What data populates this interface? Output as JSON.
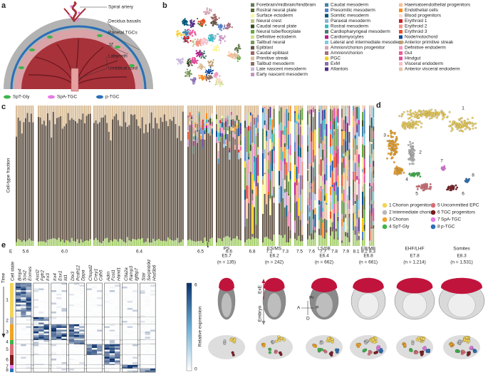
{
  "panel_labels": [
    "a",
    "b",
    "c",
    "d",
    "e",
    "f"
  ],
  "panel_a": {
    "labels": [
      "Spiral artery",
      "Decidua basalis",
      "Parietal TGCs",
      "JZ",
      "Labyrinth",
      "Umbilical cord"
    ],
    "legend": [
      {
        "label": "SpT-Gly",
        "color": "#3cb54a"
      },
      {
        "label": "SpA-TGC",
        "color": "#e879e6"
      },
      {
        "label": "p-TGC",
        "color": "#2a6fb8"
      }
    ]
  },
  "panel_b": {
    "legend": [
      {
        "label": "Forebrain/midbrain/hindbrain",
        "color": "#647a4f"
      },
      {
        "label": "Rostral neural plate",
        "color": "#556b2f"
      },
      {
        "label": "Surface ectoderm",
        "color": "#f7f79e"
      },
      {
        "label": "Neural crest",
        "color": "#c3c388"
      },
      {
        "label": "Caudal neural plate",
        "color": "#354e23"
      },
      {
        "label": "Neural tube/floorplate",
        "color": "#65a83e"
      },
      {
        "label": "Definitive ectoderm",
        "color": "#cde088"
      },
      {
        "label": "Tailbud neural",
        "color": "#7a9a5a"
      },
      {
        "label": "Epiblast",
        "color": "#635547"
      },
      {
        "label": "Caudal epiblast",
        "color": "#9e6762"
      },
      {
        "label": "Primitive streak",
        "color": "#dabe99"
      },
      {
        "label": "Tailbud mesoderm",
        "color": "#8d6e63"
      },
      {
        "label": "Late nascent mesoderm",
        "color": "#c9b8da"
      },
      {
        "label": "Early nascent mesoderm",
        "color": "#c594bf"
      },
      {
        "label": "Caudal mesoderm",
        "color": "#3f84aa"
      },
      {
        "label": "Presomitic mesoderm",
        "color": "#5581ca"
      },
      {
        "label": "Somitic mesoderm",
        "color": "#005579"
      },
      {
        "label": "Paraxial mesoderm",
        "color": "#8db5ce"
      },
      {
        "label": "Rostral mesoderm",
        "color": "#37bbc2"
      },
      {
        "label": "Cardiopharyngeal mesoderm",
        "color": "#4b7d6b"
      },
      {
        "label": "Cardiomyocytes",
        "color": "#b51d8d"
      },
      {
        "label": "Lateral and intermediate mesoderm",
        "color": "#7fc8e8"
      },
      {
        "label": "Amnion/chorion progenitor",
        "color": "#d5a5b2"
      },
      {
        "label": "Amnion/chorion",
        "color": "#a56e80"
      },
      {
        "label": "PGC",
        "color": "#facb12"
      },
      {
        "label": "ExM",
        "color": "#8870ad"
      },
      {
        "label": "Allantois",
        "color": "#532c8a"
      },
      {
        "label": "Haematoendothelial progenitors",
        "color": "#fbbe92"
      },
      {
        "label": "Endothelial cells",
        "color": "#ff891c"
      },
      {
        "label": "Blood progenitors",
        "color": "#f9decf"
      },
      {
        "label": "Erythroid 1",
        "color": "#c72228"
      },
      {
        "label": "Erythroid 2",
        "color": "#f79083"
      },
      {
        "label": "Erythroid 3",
        "color": "#ef4e22"
      },
      {
        "label": "Node/notochord",
        "color": "#0f4a9c"
      },
      {
        "label": "Anterior primitive streak",
        "color": "#c19f70"
      },
      {
        "label": "Definitive endoderm",
        "color": "#f397c0"
      },
      {
        "label": "Gut",
        "color": "#ef5a9d"
      },
      {
        "label": "Hindgut",
        "color": "#e34a9c"
      },
      {
        "label": "Visceral endoderm",
        "color": "#f6bfcb"
      },
      {
        "label": "Anterior visceral endoderm",
        "color": "#e8c1a6"
      }
    ]
  },
  "panel_c": {
    "y_label": "Cell-type fraction",
    "x_prefix": "E",
    "stages": [
      "5.6",
      "6.0",
      "6.4",
      "6.5",
      "6.6",
      "6.8",
      "7.1",
      "7.3",
      "7.5",
      "7.6",
      "7.7",
      "7.8",
      "7.9",
      "8.1",
      "8.2",
      "8.3"
    ]
  },
  "panel_d": {
    "states": [
      {
        "number": "1",
        "label": "Chorion progenitors",
        "color": "#f3d35a"
      },
      {
        "number": "2",
        "label": "Intermediate chorion",
        "color": "#b8b8b8"
      },
      {
        "number": "3",
        "label": "Chorion",
        "color": "#f0a324"
      },
      {
        "number": "4",
        "label": "SpT-Gly",
        "color": "#3cb54a"
      },
      {
        "number": "5",
        "label": "Uncommitted EPC",
        "color": "#d96d76"
      },
      {
        "number": "6",
        "label": "TGC progenitors",
        "color": "#7b1a1f"
      },
      {
        "number": "7",
        "label": "SpA-TGC",
        "color": "#e879e6"
      },
      {
        "number": "8",
        "label": "p-TGC",
        "color": "#2a6fb8"
      }
    ]
  },
  "panel_e": {
    "column_title": "Cell state",
    "time_label": "Time",
    "genes": [
      "Bmp4",
      "Sox2",
      "Eomes",
      "Ascl2",
      "Fgfr2",
      "Irx3",
      "Irx4",
      "Esx1",
      "Id1",
      "Dlx3",
      "Pcdh12",
      "Dppa",
      "Chspd2",
      "Crey1",
      "Cdh5",
      "Adm",
      "Fosl1",
      "Hand1",
      "Ctla2a",
      "Ramp3",
      "Igfbp7",
      "Star",
      "Serpinb9d",
      "Hsd3b6"
    ],
    "states": [
      "1",
      "2",
      "3",
      "4",
      "5",
      "6",
      "7",
      "8"
    ],
    "colorbar": {
      "max": "6",
      "min": "0",
      "label": "Relative expression"
    }
  },
  "panel_f": {
    "stages": [
      {
        "name": "PS",
        "day": "E5.7",
        "n": "(n = 135)"
      },
      {
        "name": "ES/MS",
        "day": "E6.2",
        "n": "(n = 242)"
      },
      {
        "name": "LS/0B",
        "day": "E6.4",
        "n": "(n = 662)"
      },
      {
        "name": "EB/MB",
        "day": "E6.8",
        "n": "(n = 661)"
      },
      {
        "name": "EHF/LHF",
        "day": "E7.8",
        "n": "(n = 1,214)"
      },
      {
        "name": "Somites",
        "day": "E8.3",
        "n": "(n = 1,531)"
      }
    ],
    "axis_labels": [
      "ExE",
      "Embryo"
    ],
    "compass": [
      "Pr",
      "D",
      "A",
      "P"
    ]
  }
}
